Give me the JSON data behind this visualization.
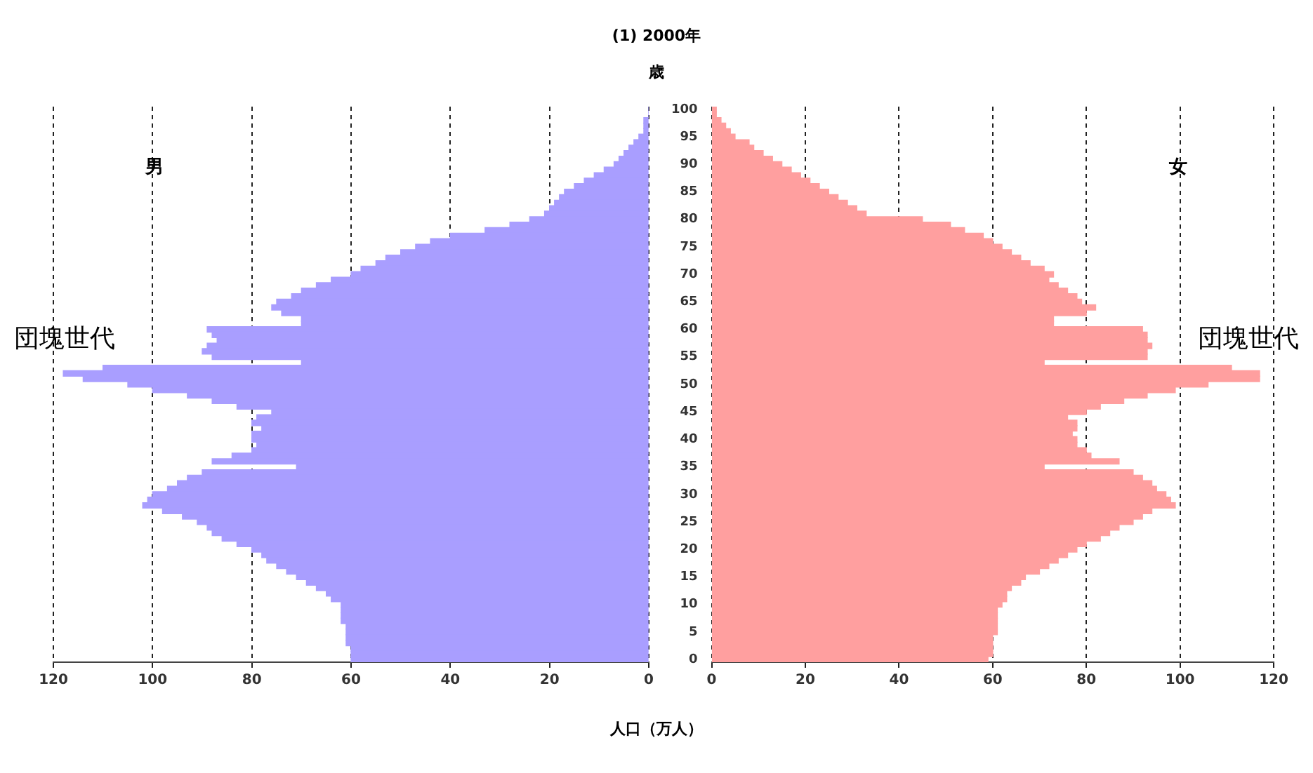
{
  "chart_data": [
    {
      "type": "bar",
      "orientation": "horizontal",
      "title": "(1) 2000年",
      "categories": [
        "100",
        null,
        null,
        null,
        null,
        "95",
        null,
        null,
        null,
        null,
        "90",
        null,
        null,
        null,
        null,
        "85",
        null,
        null,
        null,
        null,
        "80",
        null,
        null,
        null,
        null,
        "75",
        null,
        null,
        null,
        null,
        "70",
        null,
        null,
        null,
        null,
        "65",
        null,
        null,
        null,
        null,
        "60",
        null,
        null,
        null,
        null,
        "55",
        null,
        null,
        null,
        null,
        "50",
        null,
        null,
        null,
        null,
        "45",
        null,
        null,
        null,
        null,
        "40",
        null,
        null,
        null,
        null,
        "35",
        null,
        null,
        null,
        null,
        "30",
        null,
        null,
        null,
        null,
        "25",
        null,
        null,
        null,
        null,
        "20",
        null,
        null,
        null,
        null,
        "15",
        null,
        null,
        null,
        null,
        "10",
        null,
        null,
        null,
        null,
        "5",
        null,
        null,
        null,
        null,
        "0"
      ],
      "series": [
        {
          "name": "男",
          "color": "#a99eff",
          "values": [
            0,
            0,
            1,
            1,
            1,
            2,
            3,
            4,
            5,
            6,
            7,
            9,
            11,
            13,
            15,
            17,
            18,
            19,
            20,
            21,
            24,
            28,
            33,
            40,
            44,
            47,
            50,
            53,
            55,
            58,
            60,
            64,
            67,
            70,
            72,
            75,
            76,
            74,
            70,
            70,
            89,
            88,
            87,
            89,
            90,
            88,
            70,
            110,
            118,
            114,
            105,
            100,
            93,
            88,
            83,
            76,
            79,
            80,
            78,
            80,
            80,
            79,
            80,
            84,
            88,
            71,
            90,
            93,
            95,
            97,
            100,
            101,
            102,
            98,
            94,
            91,
            89,
            88,
            86,
            83,
            80,
            78,
            77,
            75,
            73,
            71,
            69,
            67,
            65,
            64,
            62,
            62,
            62,
            62,
            61,
            61,
            61,
            61,
            60,
            60,
            60
          ]
        }
      ],
      "xlim": [
        120,
        0
      ],
      "xticks": [
        120,
        100,
        80,
        60,
        40,
        20,
        0
      ],
      "grid": "x",
      "tick_labels": "x",
      "annotations": [
        "団塊世代"
      ]
    },
    {
      "type": "bar",
      "orientation": "horizontal",
      "ylabel": "歳",
      "xlabel": "人口（万人）",
      "categories": [
        "100",
        null,
        null,
        null,
        null,
        "95",
        null,
        null,
        null,
        null,
        "90",
        null,
        null,
        null,
        null,
        "85",
        null,
        null,
        null,
        null,
        "80",
        null,
        null,
        null,
        null,
        "75",
        null,
        null,
        null,
        null,
        "70",
        null,
        null,
        null,
        null,
        "65",
        null,
        null,
        null,
        null,
        "60",
        null,
        null,
        null,
        null,
        "55",
        null,
        null,
        null,
        null,
        "50",
        null,
        null,
        null,
        null,
        "45",
        null,
        null,
        null,
        null,
        "40",
        null,
        null,
        null,
        null,
        "35",
        null,
        null,
        null,
        null,
        "30",
        null,
        null,
        null,
        null,
        "25",
        null,
        null,
        null,
        null,
        "20",
        null,
        null,
        null,
        null,
        "15",
        null,
        null,
        null,
        null,
        "10",
        null,
        null,
        null,
        null,
        "5",
        null,
        null,
        null,
        null,
        "0"
      ],
      "series": [
        {
          "name": "女",
          "color": "#ff9f9f",
          "values": [
            1,
            1,
            2,
            3,
            4,
            5,
            8,
            9,
            11,
            13,
            15,
            17,
            19,
            21,
            23,
            25,
            27,
            29,
            31,
            33,
            45,
            51,
            54,
            58,
            60,
            62,
            64,
            66,
            68,
            71,
            73,
            72,
            74,
            76,
            78,
            79,
            82,
            80,
            73,
            73,
            92,
            93,
            93,
            94,
            93,
            93,
            71,
            111,
            117,
            117,
            106,
            99,
            93,
            88,
            83,
            80,
            76,
            78,
            78,
            77,
            78,
            78,
            80,
            81,
            87,
            71,
            90,
            92,
            94,
            95,
            97,
            98,
            99,
            94,
            92,
            90,
            87,
            85,
            83,
            80,
            78,
            76,
            74,
            72,
            70,
            67,
            66,
            64,
            63,
            63,
            62,
            61,
            61,
            61,
            61,
            61,
            60,
            60,
            60,
            60,
            59
          ]
        }
      ],
      "xlim": [
        0,
        120
      ],
      "xticks": [
        0,
        20,
        40,
        60,
        80,
        100,
        120
      ],
      "grid": "x",
      "annotations": [
        "団塊世代"
      ]
    }
  ]
}
